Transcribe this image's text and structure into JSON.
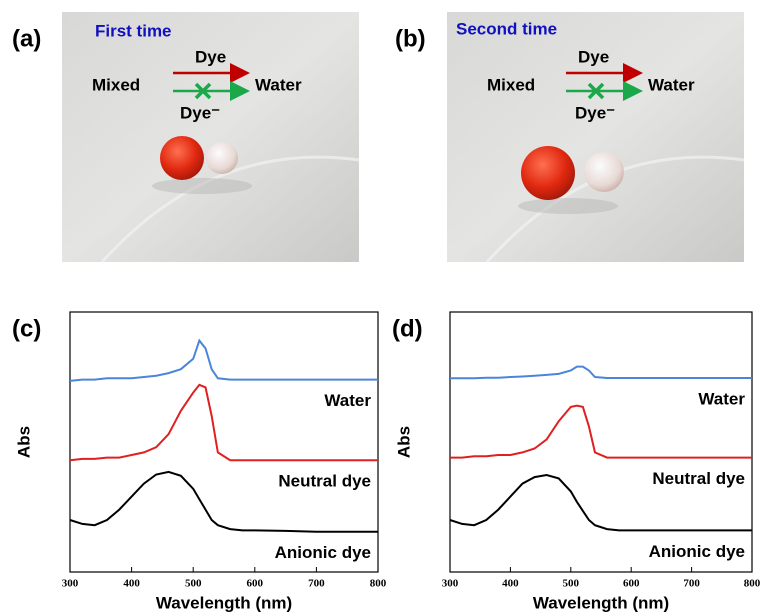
{
  "panels": [
    {
      "label": "(a)",
      "title": "First time",
      "mixed": "Mixed",
      "dye": "Dye",
      "dye_anion": "Dye⁻",
      "water": "Water"
    },
    {
      "label": "(b)",
      "title": "Second time",
      "mixed": "Mixed",
      "dye": "Dye",
      "dye_anion": "Dye⁻",
      "water": "Water"
    }
  ],
  "chart_data": [
    {
      "type": "line",
      "label": "(c)",
      "x_label": "Wavelength (nm)",
      "y_label": "Abs",
      "x": [
        300,
        320,
        340,
        360,
        380,
        400,
        420,
        440,
        460,
        480,
        500,
        510,
        520,
        530,
        540,
        560,
        580,
        600,
        650,
        700,
        750,
        800
      ],
      "xlim": [
        300,
        800
      ],
      "xticks": [
        300,
        400,
        500,
        600,
        700,
        800
      ],
      "ylim": [
        0,
        1
      ],
      "series": [
        {
          "name": "Water",
          "color": "#4a86d8",
          "values": [
            0.735,
            0.74,
            0.74,
            0.745,
            0.745,
            0.745,
            0.75,
            0.755,
            0.765,
            0.78,
            0.82,
            0.89,
            0.86,
            0.78,
            0.745,
            0.74,
            0.74,
            0.74,
            0.74,
            0.74,
            0.74,
            0.74
          ]
        },
        {
          "name": "Neutral dye",
          "color": "#e02020",
          "values": [
            0.43,
            0.435,
            0.435,
            0.44,
            0.44,
            0.45,
            0.46,
            0.48,
            0.53,
            0.62,
            0.69,
            0.72,
            0.71,
            0.6,
            0.46,
            0.43,
            0.43,
            0.43,
            0.43,
            0.43,
            0.43,
            0.43
          ]
        },
        {
          "name": "Anionic dye",
          "color": "#000000",
          "values": [
            0.2,
            0.185,
            0.18,
            0.2,
            0.24,
            0.29,
            0.34,
            0.375,
            0.385,
            0.37,
            0.32,
            0.28,
            0.24,
            0.2,
            0.18,
            0.165,
            0.16,
            0.16,
            0.158,
            0.155,
            0.155,
            0.155
          ]
        }
      ]
    },
    {
      "type": "line",
      "label": "(d)",
      "x_label": "Wavelength (nm)",
      "y_label": "Abs",
      "x": [
        300,
        320,
        340,
        360,
        380,
        400,
        420,
        440,
        460,
        480,
        500,
        510,
        520,
        530,
        540,
        560,
        580,
        600,
        650,
        700,
        750,
        800
      ],
      "xlim": [
        300,
        800
      ],
      "xticks": [
        300,
        400,
        500,
        600,
        700,
        800
      ],
      "ylim": [
        0,
        1
      ],
      "series": [
        {
          "name": "Water",
          "color": "#4a86d8",
          "values": [
            0.745,
            0.745,
            0.745,
            0.747,
            0.747,
            0.75,
            0.752,
            0.755,
            0.758,
            0.762,
            0.775,
            0.79,
            0.79,
            0.775,
            0.75,
            0.746,
            0.746,
            0.746,
            0.746,
            0.746,
            0.746,
            0.746
          ]
        },
        {
          "name": "Neutral dye",
          "color": "#e02020",
          "values": [
            0.44,
            0.44,
            0.445,
            0.445,
            0.45,
            0.45,
            0.46,
            0.475,
            0.51,
            0.58,
            0.635,
            0.64,
            0.635,
            0.56,
            0.46,
            0.44,
            0.44,
            0.44,
            0.44,
            0.44,
            0.44,
            0.44
          ]
        },
        {
          "name": "Anionic dye",
          "color": "#000000",
          "values": [
            0.2,
            0.185,
            0.18,
            0.2,
            0.24,
            0.29,
            0.34,
            0.365,
            0.373,
            0.36,
            0.31,
            0.27,
            0.235,
            0.2,
            0.18,
            0.165,
            0.16,
            0.16,
            0.16,
            0.16,
            0.16,
            0.16
          ]
        }
      ]
    }
  ]
}
